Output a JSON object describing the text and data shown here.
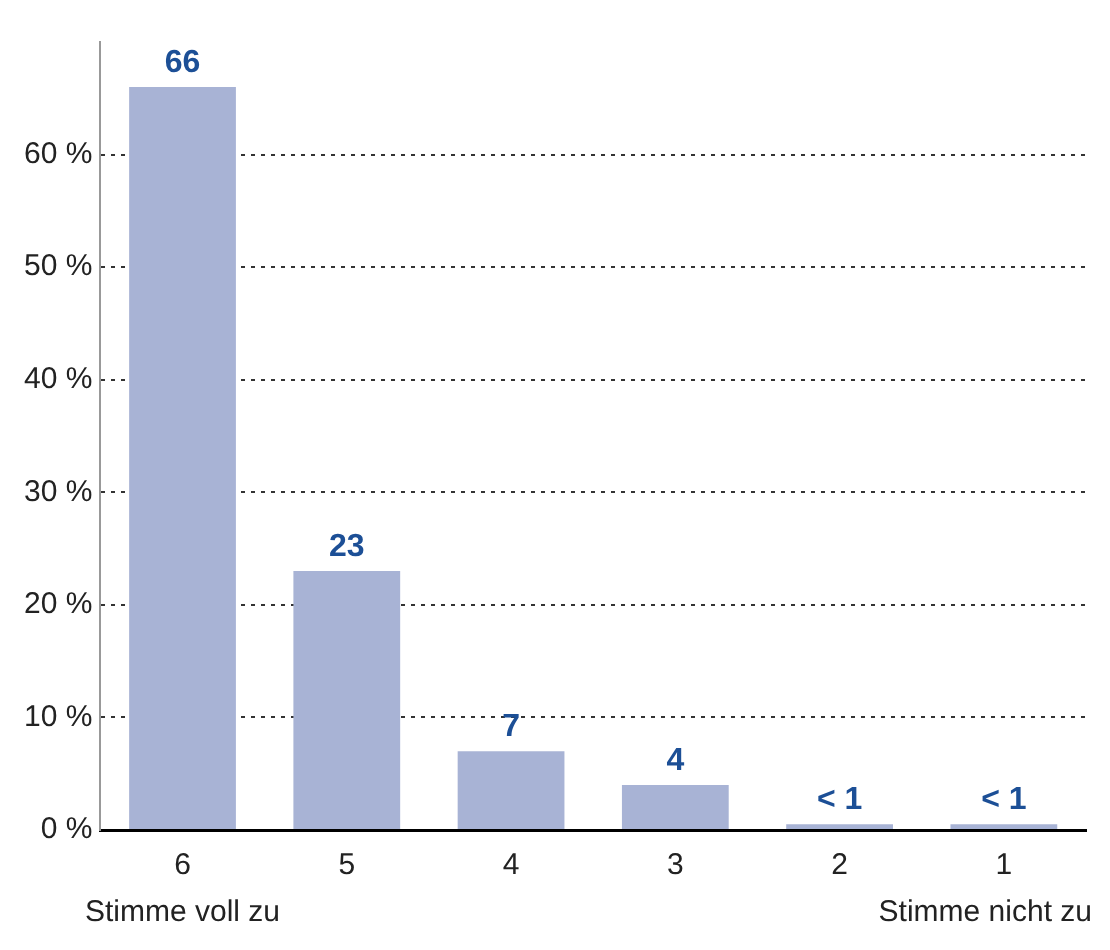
{
  "chart_data": {
    "type": "bar",
    "categories": [
      "6",
      "5",
      "4",
      "3",
      "2",
      "1"
    ],
    "values": [
      66,
      23,
      7,
      4,
      0.5,
      0.5
    ],
    "value_labels": [
      "66",
      "23",
      "7",
      "4",
      "< 1",
      "< 1"
    ],
    "color": "#a8b3d5",
    "ylim": [
      0,
      70
    ],
    "yticks": [
      {
        "value": 0,
        "label": "0 %"
      },
      {
        "value": 10,
        "label": "10 %"
      },
      {
        "value": 20,
        "label": "20 %"
      },
      {
        "value": 30,
        "label": "30 %"
      },
      {
        "value": 40,
        "label": "40 %"
      },
      {
        "value": 50,
        "label": "50 %"
      },
      {
        "value": 60,
        "label": "60 %"
      }
    ],
    "grid": "y",
    "legend": false,
    "annotations": [
      "Stimme voll zu",
      "Stimme nicht zu"
    ]
  }
}
